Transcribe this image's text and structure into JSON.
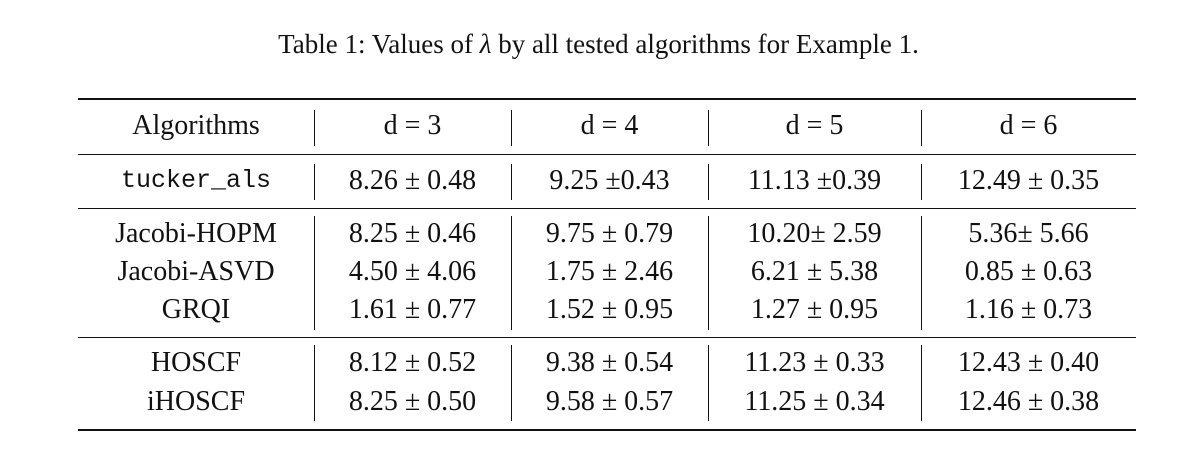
{
  "caption": {
    "prefix": "Table 1: Values of ",
    "symbol": "λ",
    "suffix": " by all tested algorithms for Example 1."
  },
  "table": {
    "headers": [
      "Algorithms",
      "d = 3",
      "d = 4",
      "d = 5",
      "d = 6"
    ],
    "groups": [
      {
        "rows": [
          {
            "algorithm": "tucker_als",
            "values": [
              "8.26 ± 0.48",
              "9.25 ±0.43",
              "11.13 ±0.39",
              "12.49 ± 0.35"
            ]
          }
        ]
      },
      {
        "rows": [
          {
            "algorithm": "Jacobi-HOPM",
            "values": [
              "8.25 ± 0.46",
              "9.75 ± 0.79",
              "10.20± 2.59",
              "5.36± 5.66"
            ]
          },
          {
            "algorithm": "Jacobi-ASVD",
            "values": [
              "4.50 ± 4.06",
              "1.75 ± 2.46",
              "6.21 ± 5.38",
              "0.85 ± 0.63"
            ]
          },
          {
            "algorithm": "GRQI",
            "values": [
              "1.61 ± 0.77",
              "1.52 ± 0.95",
              "1.27 ± 0.95",
              "1.16 ± 0.73"
            ]
          }
        ]
      },
      {
        "rows": [
          {
            "algorithm": "HOSCF",
            "values": [
              "8.12 ± 0.52",
              "9.38 ± 0.54",
              "11.23 ± 0.33",
              "12.43 ± 0.40"
            ]
          },
          {
            "algorithm": "iHOSCF",
            "values": [
              "8.25 ± 0.50",
              "9.58 ± 0.57",
              "11.25 ± 0.34",
              "12.46 ± 0.38"
            ]
          }
        ]
      }
    ]
  }
}
